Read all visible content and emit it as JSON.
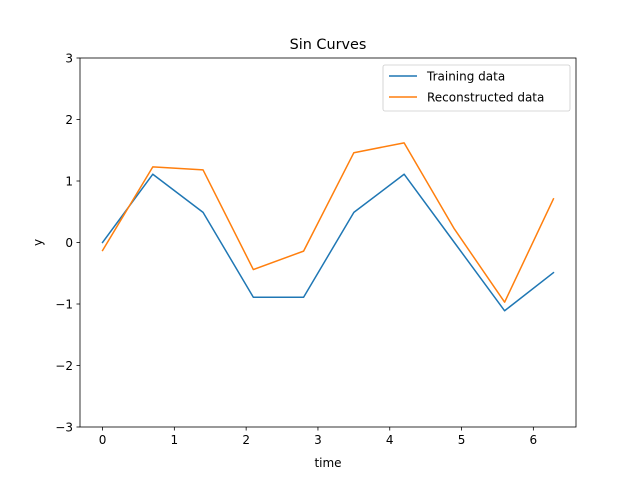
{
  "chart_data": {
    "type": "line",
    "title": "Sin Curves",
    "xlabel": "time",
    "ylabel": "y",
    "xlim": [
      -0.314,
      6.594
    ],
    "ylim": [
      -3,
      3
    ],
    "xticks": [
      0,
      1,
      2,
      3,
      4,
      5,
      6
    ],
    "xtick_labels": [
      "0",
      "1",
      "2",
      "3",
      "4",
      "5",
      "6"
    ],
    "yticks": [
      -3,
      -2,
      -1,
      0,
      1,
      2,
      3
    ],
    "ytick_labels": [
      "−3",
      "−2",
      "−1",
      "0",
      "1",
      "2",
      "3"
    ],
    "grid": false,
    "legend_position": "upper right",
    "x": [
      0,
      0.7,
      1.4,
      2.1,
      2.8,
      3.5,
      4.2,
      4.9,
      5.6,
      6.28
    ],
    "series": [
      {
        "name": "Training data",
        "color": "#1f77b4",
        "values": [
          0,
          1.11,
          0.49,
          -0.89,
          -0.89,
          0.49,
          1.11,
          0,
          -1.11,
          -0.49
        ]
      },
      {
        "name": "Reconstructed data",
        "color": "#ff7f0e",
        "values": [
          -0.13,
          1.23,
          1.18,
          -0.44,
          -0.14,
          1.46,
          1.62,
          0.22,
          -0.97,
          0.71
        ]
      }
    ]
  }
}
